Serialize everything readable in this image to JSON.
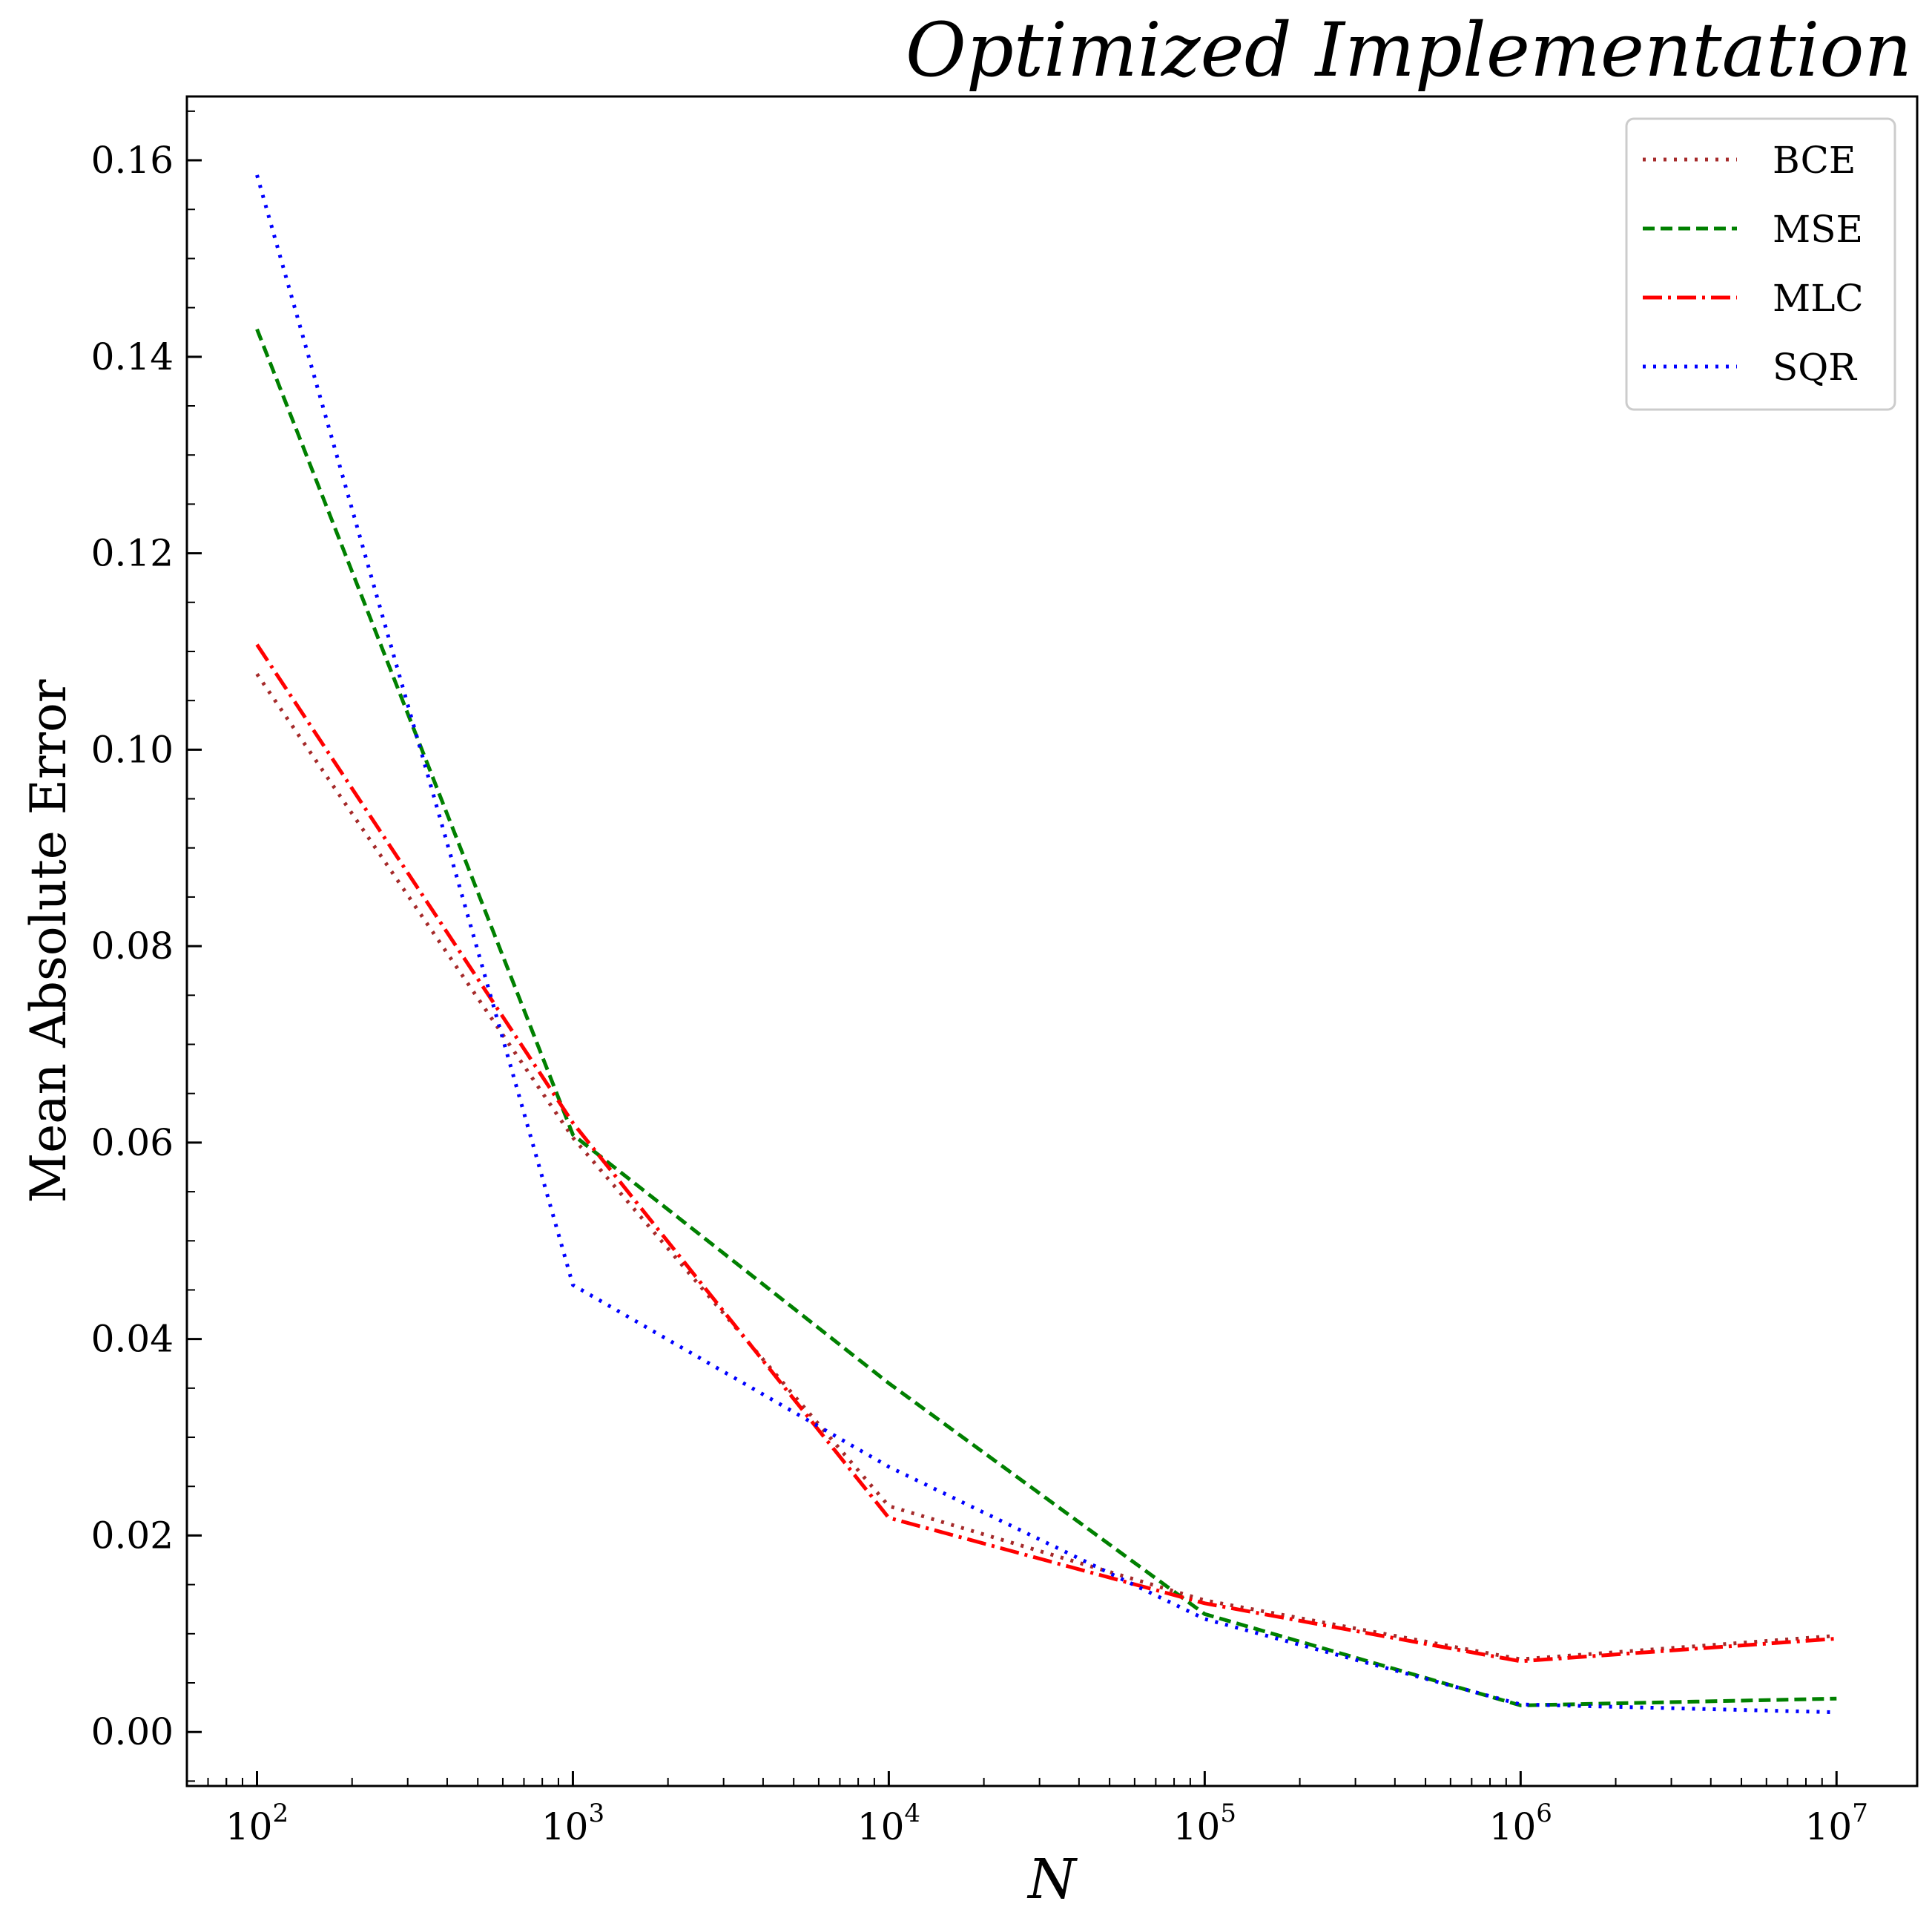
{
  "chart_data": {
    "type": "line",
    "title": "Optimized Implementation",
    "xlabel": "N",
    "ylabel": "Mean Absolute Error",
    "xscale": "log",
    "xlim": [
      60,
      18000000
    ],
    "ylim": [
      -0.0055,
      0.1665
    ],
    "x_ticks": [
      {
        "value": 100,
        "base": "10",
        "exp": "2"
      },
      {
        "value": 1000,
        "base": "10",
        "exp": "3"
      },
      {
        "value": 10000,
        "base": "10",
        "exp": "4"
      },
      {
        "value": 100000,
        "base": "10",
        "exp": "5"
      },
      {
        "value": 1000000,
        "base": "10",
        "exp": "6"
      },
      {
        "value": 10000000,
        "base": "10",
        "exp": "7"
      }
    ],
    "y_ticks": [
      {
        "value": 0.0,
        "label": "0.00"
      },
      {
        "value": 0.02,
        "label": "0.02"
      },
      {
        "value": 0.04,
        "label": "0.04"
      },
      {
        "value": 0.06,
        "label": "0.06"
      },
      {
        "value": 0.08,
        "label": "0.08"
      },
      {
        "value": 0.1,
        "label": "0.10"
      },
      {
        "value": 0.12,
        "label": "0.12"
      },
      {
        "value": 0.14,
        "label": "0.14"
      },
      {
        "value": 0.16,
        "label": "0.16"
      }
    ],
    "grid": false,
    "legend_position": "top-right",
    "x": [
      100,
      1000,
      10000,
      100000,
      1000000,
      10000000
    ],
    "series": [
      {
        "name": "BCE",
        "color": "#a52a2a",
        "dash": "dotted",
        "values": [
          0.1077,
          0.0605,
          0.023,
          0.0134,
          0.0074,
          0.0098
        ]
      },
      {
        "name": "MSE",
        "color": "#008000",
        "dash": "dashed",
        "values": [
          0.1428,
          0.0608,
          0.0355,
          0.012,
          0.0027,
          0.0034
        ]
      },
      {
        "name": "MLC",
        "color": "#ff0000",
        "dash": "dashdot",
        "values": [
          0.1107,
          0.062,
          0.0218,
          0.0131,
          0.0072,
          0.0095
        ]
      },
      {
        "name": "SQR",
        "color": "#0000ff",
        "dash": "dotted",
        "values": [
          0.1585,
          0.0455,
          0.027,
          0.0115,
          0.0028,
          0.002
        ]
      }
    ]
  }
}
